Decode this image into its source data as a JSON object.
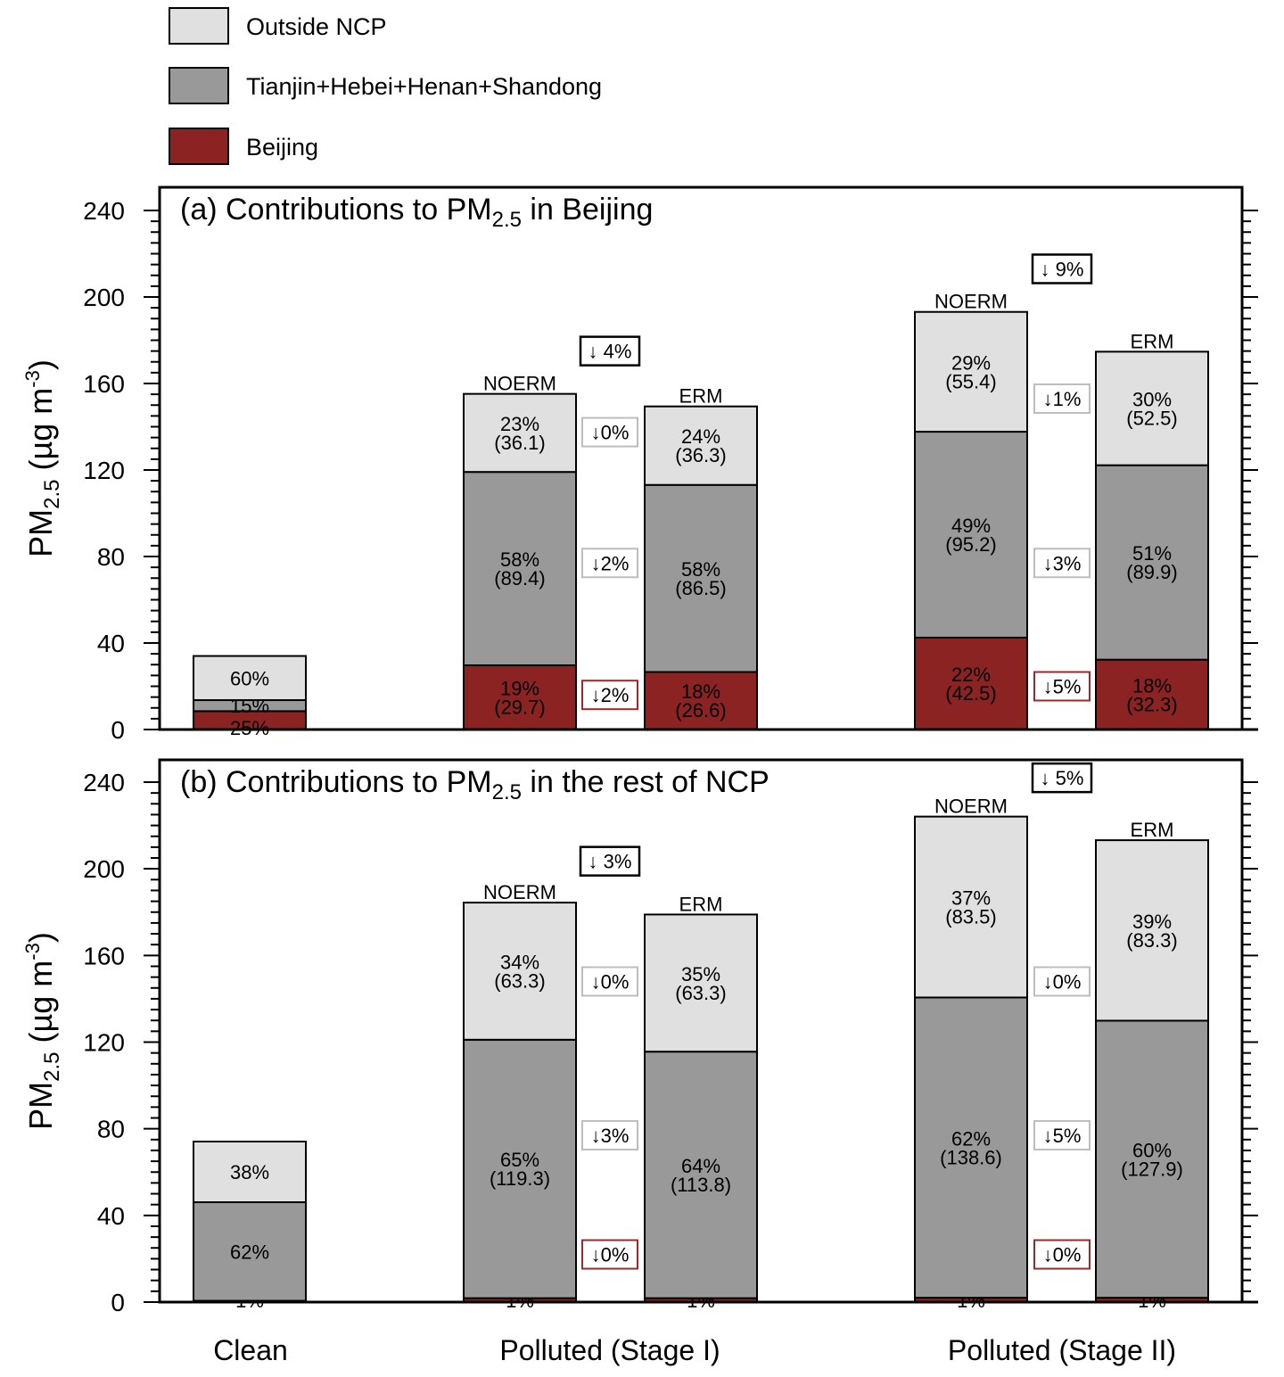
{
  "legend": [
    {
      "key": "outside",
      "label": "Outside NCP",
      "color": "#e0e0e0"
    },
    {
      "key": "tj",
      "label": "Tianjin+Hebei+Henan+Shandong",
      "color": "#999999"
    },
    {
      "key": "bj",
      "label": "Beijing",
      "color": "#8b2323"
    }
  ],
  "colors": {
    "axis": "#000000",
    "box_black": "#000000",
    "box_red": "#9b2a2a"
  },
  "chart_data": [
    {
      "type": "bar",
      "stacked": true,
      "title": "(a) Contributions to PM",
      "title_sub": "2.5",
      "title_suffix": " in Beijing",
      "ylabel_main": "PM",
      "ylabel_sub": "2.5",
      "ylabel_unit": " (µg m",
      "ylabel_sup": "-3",
      "ylabel_close": ")",
      "ylim": [
        0,
        240
      ],
      "yticks": [
        0,
        40,
        80,
        120,
        160,
        200,
        240
      ],
      "bars": [
        {
          "category": "Clean",
          "run": "",
          "values": {
            "bj": 8.5,
            "tj": 5.1,
            "outside": 20.4
          },
          "labels": {
            "bj": [
              "25%"
            ],
            "tj": [
              "15%"
            ],
            "outside": [
              "60%"
            ]
          }
        },
        {
          "category": "Polluted (Stage I)",
          "run": "NOERM",
          "values": {
            "bj": 29.7,
            "tj": 89.4,
            "outside": 36.1
          },
          "labels": {
            "bj": [
              "19%",
              "(29.7)"
            ],
            "tj": [
              "58%",
              "(89.4)"
            ],
            "outside": [
              "23%",
              "(36.1)"
            ]
          }
        },
        {
          "category": "Polluted (Stage I)",
          "run": "ERM",
          "values": {
            "bj": 26.6,
            "tj": 86.5,
            "outside": 36.3
          },
          "labels": {
            "bj": [
              "18%",
              "(26.6)"
            ],
            "tj": [
              "58%",
              "(86.5)"
            ],
            "outside": [
              "24%",
              "(36.3)"
            ]
          }
        },
        {
          "category": "Polluted (Stage II)",
          "run": "NOERM",
          "values": {
            "bj": 42.5,
            "tj": 95.2,
            "outside": 55.4
          },
          "labels": {
            "bj": [
              "22%",
              "(42.5)"
            ],
            "tj": [
              "49%",
              "(95.2)"
            ],
            "outside": [
              "29%",
              "(55.4)"
            ]
          }
        },
        {
          "category": "Polluted (Stage II)",
          "run": "ERM",
          "values": {
            "bj": 32.3,
            "tj": 89.9,
            "outside": 52.5
          },
          "labels": {
            "bj": [
              "18%",
              "(32.3)"
            ],
            "tj": [
              "51%",
              "(89.9)"
            ],
            "outside": [
              "30%",
              "(52.5)"
            ]
          }
        }
      ],
      "changes": [
        {
          "group": 1,
          "text": "↓ 4%",
          "y": 175,
          "box": "black"
        },
        {
          "group": 1,
          "text": "↓0%",
          "y": 137.5,
          "box": "light"
        },
        {
          "group": 1,
          "text": "↓2%",
          "y": 77,
          "box": "light"
        },
        {
          "group": 1,
          "text": "↓2%",
          "y": 16,
          "box": "red"
        },
        {
          "group": 2,
          "text": "↓ 9%",
          "y": 213,
          "box": "black"
        },
        {
          "group": 2,
          "text": "↓1%",
          "y": 153,
          "box": "light"
        },
        {
          "group": 2,
          "text": "↓3%",
          "y": 77,
          "box": "light"
        },
        {
          "group": 2,
          "text": "↓5%",
          "y": 20,
          "box": "red"
        }
      ]
    },
    {
      "type": "bar",
      "stacked": true,
      "title": "(b) Contributions to PM",
      "title_sub": "2.5",
      "title_suffix": " in the rest of NCP",
      "ylabel_main": "PM",
      "ylabel_sub": "2.5",
      "ylabel_unit": " (µg m",
      "ylabel_sup": "-3",
      "ylabel_close": ")",
      "ylim": [
        0,
        240
      ],
      "yticks": [
        0,
        40,
        80,
        120,
        160,
        200,
        240
      ],
      "bars": [
        {
          "category": "Clean",
          "run": "",
          "values": {
            "bj": 0.6,
            "tj": 45.5,
            "outside": 28
          },
          "labels": {
            "bj": [
              "1%"
            ],
            "tj": [
              "62%"
            ],
            "outside": [
              "38%"
            ]
          }
        },
        {
          "category": "Polluted (Stage I)",
          "run": "NOERM",
          "values": {
            "bj": 1.8,
            "tj": 119.3,
            "outside": 63.3
          },
          "labels": {
            "bj": [
              "1%"
            ],
            "tj": [
              "65%",
              "(119.3)"
            ],
            "outside": [
              "34%",
              "(63.3)"
            ]
          }
        },
        {
          "category": "Polluted (Stage I)",
          "run": "ERM",
          "values": {
            "bj": 1.8,
            "tj": 113.8,
            "outside": 63.3
          },
          "labels": {
            "bj": [
              "1%"
            ],
            "tj": [
              "64%",
              "(113.8)"
            ],
            "outside": [
              "35%",
              "(63.3)"
            ]
          }
        },
        {
          "category": "Polluted (Stage II)",
          "run": "NOERM",
          "values": {
            "bj": 2,
            "tj": 138.6,
            "outside": 83.5
          },
          "labels": {
            "bj": [
              "1%"
            ],
            "tj": [
              "62%",
              "(138.6)"
            ],
            "outside": [
              "37%",
              "(83.5)"
            ]
          }
        },
        {
          "category": "Polluted (Stage II)",
          "run": "ERM",
          "values": {
            "bj": 2,
            "tj": 127.9,
            "outside": 83.3
          },
          "labels": {
            "bj": [
              "1%"
            ],
            "tj": [
              "60%",
              "(127.9)"
            ],
            "outside": [
              "39%",
              "(83.3)"
            ]
          }
        }
      ],
      "changes": [
        {
          "group": 1,
          "text": "↓ 3%",
          "y": 203.5,
          "box": "black"
        },
        {
          "group": 1,
          "text": "↓0%",
          "y": 148,
          "box": "light"
        },
        {
          "group": 1,
          "text": "↓3%",
          "y": 77,
          "box": "light"
        },
        {
          "group": 1,
          "text": "↓0%",
          "y": 22,
          "box": "red"
        },
        {
          "group": 2,
          "text": "↓ 5%",
          "y": 242,
          "box": "black"
        },
        {
          "group": 2,
          "text": "↓0%",
          "y": 148,
          "box": "light"
        },
        {
          "group": 2,
          "text": "↓5%",
          "y": 77,
          "box": "light"
        },
        {
          "group": 2,
          "text": "↓0%",
          "y": 22,
          "box": "red"
        }
      ]
    }
  ],
  "categories": [
    "Clean",
    "Polluted (Stage I)",
    "Polluted (Stage II)"
  ]
}
